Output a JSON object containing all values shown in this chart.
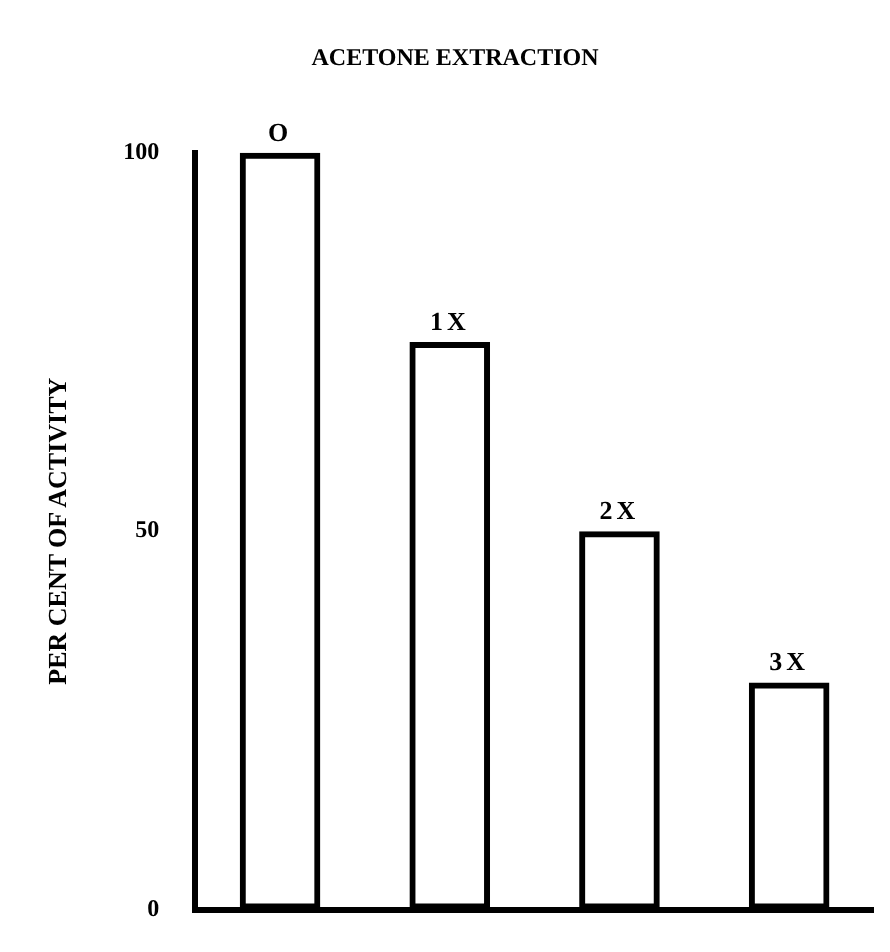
{
  "chart_data": {
    "type": "bar",
    "title": "ACETONE EXTRACTION",
    "ylabel": "PER CENT OF ACTIVITY",
    "categories": [
      "O",
      "1X",
      "2X",
      "3X"
    ],
    "values": [
      100,
      75,
      50,
      30
    ],
    "color": "#000000",
    "ylim": [
      0,
      100
    ],
    "yticks": [
      0,
      50,
      100
    ],
    "grid": false,
    "legend": false
  }
}
